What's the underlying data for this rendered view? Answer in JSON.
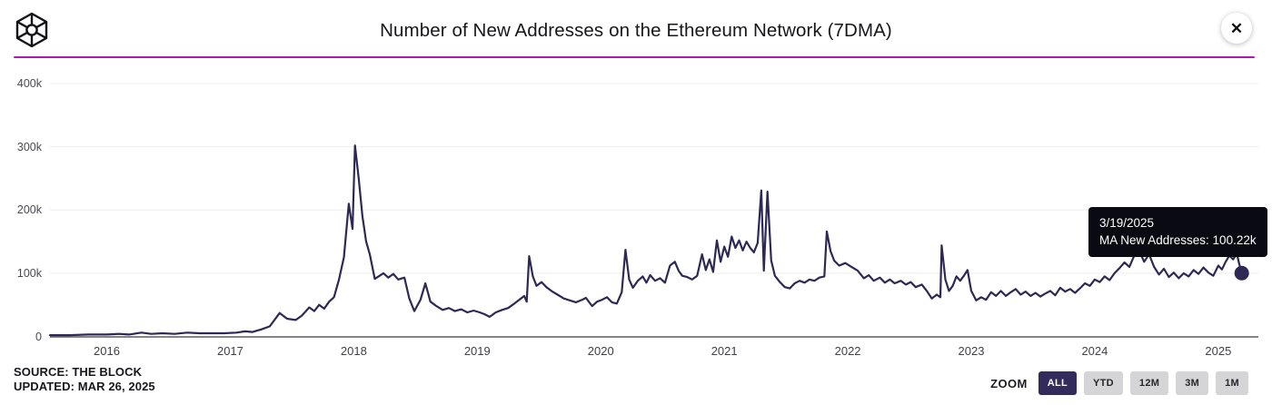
{
  "header": {
    "title": "Number of New Addresses on the Ethereum Network (7DMA)",
    "close_label": "✕"
  },
  "tooltip": {
    "date": "3/19/2025",
    "text": "MA New Addresses: 100.22k"
  },
  "footer": {
    "source": "SOURCE: THE BLOCK",
    "updated": "UPDATED: MAR 26, 2025"
  },
  "zoom_controls": {
    "label": "ZOOM",
    "options": [
      {
        "label": "ALL",
        "active": true
      },
      {
        "label": "YTD",
        "active": false
      },
      {
        "label": "12M",
        "active": false
      },
      {
        "label": "3M",
        "active": false
      },
      {
        "label": "1M",
        "active": false
      }
    ]
  },
  "colors": {
    "line": "#2d2954",
    "marker": "#2d2954",
    "grid": "#ededed",
    "axis": "#3a3a3a",
    "divider": "#a81cb4",
    "active_button": "#322b5b"
  },
  "chart_data": {
    "type": "line",
    "title": "Number of New Addresses on the Ethereum Network (7DMA)",
    "xlabel": "",
    "ylabel": "",
    "unit": "thousands of addresses",
    "grid": true,
    "legend": false,
    "x_range": [
      2015.54,
      2025.31
    ],
    "ylim": [
      0,
      400
    ],
    "y_ticks": [
      {
        "label": "400k",
        "value": 400
      },
      {
        "label": "300k",
        "value": 300
      },
      {
        "label": "200k",
        "value": 200
      },
      {
        "label": "100k",
        "value": 100
      },
      {
        "label": "0",
        "value": 0
      }
    ],
    "x_ticks": [
      {
        "label": "2016",
        "value": 2016
      },
      {
        "label": "2017",
        "value": 2017
      },
      {
        "label": "2018",
        "value": 2018
      },
      {
        "label": "2019",
        "value": 2019
      },
      {
        "label": "2020",
        "value": 2020
      },
      {
        "label": "2021",
        "value": 2021
      },
      {
        "label": "2022",
        "value": 2022
      },
      {
        "label": "2023",
        "value": 2023
      },
      {
        "label": "2024",
        "value": 2024
      },
      {
        "label": "2025",
        "value": 2025
      }
    ],
    "marker_point": {
      "x": 2025.19,
      "y": 100.22,
      "date": "3/19/2025",
      "label": "MA New Addresses: 100.22k"
    },
    "series": [
      {
        "name": "MA New Addresses",
        "points": [
          [
            2015.54,
            2
          ],
          [
            2015.7,
            2
          ],
          [
            2015.85,
            3
          ],
          [
            2016.0,
            3
          ],
          [
            2016.1,
            4
          ],
          [
            2016.18,
            3
          ],
          [
            2016.28,
            6
          ],
          [
            2016.36,
            4
          ],
          [
            2016.45,
            5
          ],
          [
            2016.55,
            4
          ],
          [
            2016.65,
            6
          ],
          [
            2016.75,
            5
          ],
          [
            2016.85,
            5
          ],
          [
            2016.95,
            5
          ],
          [
            2017.05,
            6
          ],
          [
            2017.12,
            8
          ],
          [
            2017.18,
            7
          ],
          [
            2017.25,
            11
          ],
          [
            2017.32,
            16
          ],
          [
            2017.4,
            37
          ],
          [
            2017.46,
            28
          ],
          [
            2017.53,
            26
          ],
          [
            2017.58,
            33
          ],
          [
            2017.64,
            46
          ],
          [
            2017.68,
            40
          ],
          [
            2017.72,
            50
          ],
          [
            2017.76,
            44
          ],
          [
            2017.8,
            55
          ],
          [
            2017.84,
            62
          ],
          [
            2017.88,
            90
          ],
          [
            2017.92,
            125
          ],
          [
            2017.96,
            210
          ],
          [
            2017.99,
            170
          ],
          [
            2018.01,
            302
          ],
          [
            2018.04,
            250
          ],
          [
            2018.07,
            190
          ],
          [
            2018.1,
            150
          ],
          [
            2018.13,
            130
          ],
          [
            2018.17,
            91
          ],
          [
            2018.2,
            95
          ],
          [
            2018.24,
            100
          ],
          [
            2018.28,
            93
          ],
          [
            2018.32,
            99
          ],
          [
            2018.36,
            90
          ],
          [
            2018.41,
            93
          ],
          [
            2018.45,
            60
          ],
          [
            2018.49,
            40
          ],
          [
            2018.54,
            58
          ],
          [
            2018.58,
            84
          ],
          [
            2018.62,
            55
          ],
          [
            2018.67,
            48
          ],
          [
            2018.72,
            42
          ],
          [
            2018.77,
            45
          ],
          [
            2018.82,
            40
          ],
          [
            2018.87,
            43
          ],
          [
            2018.92,
            38
          ],
          [
            2018.97,
            41
          ],
          [
            2019.02,
            38
          ],
          [
            2019.06,
            35
          ],
          [
            2019.1,
            31
          ],
          [
            2019.15,
            38
          ],
          [
            2019.2,
            42
          ],
          [
            2019.25,
            45
          ],
          [
            2019.3,
            52
          ],
          [
            2019.34,
            58
          ],
          [
            2019.38,
            64
          ],
          [
            2019.4,
            55
          ],
          [
            2019.42,
            127
          ],
          [
            2019.45,
            95
          ],
          [
            2019.48,
            80
          ],
          [
            2019.52,
            86
          ],
          [
            2019.56,
            78
          ],
          [
            2019.6,
            72
          ],
          [
            2019.65,
            66
          ],
          [
            2019.7,
            60
          ],
          [
            2019.75,
            57
          ],
          [
            2019.8,
            54
          ],
          [
            2019.85,
            58
          ],
          [
            2019.88,
            61
          ],
          [
            2019.93,
            48
          ],
          [
            2019.97,
            55
          ],
          [
            2020.01,
            58
          ],
          [
            2020.05,
            62
          ],
          [
            2020.09,
            54
          ],
          [
            2020.13,
            52
          ],
          [
            2020.17,
            70
          ],
          [
            2020.2,
            137
          ],
          [
            2020.23,
            90
          ],
          [
            2020.26,
            77
          ],
          [
            2020.3,
            88
          ],
          [
            2020.34,
            95
          ],
          [
            2020.37,
            85
          ],
          [
            2020.4,
            97
          ],
          [
            2020.44,
            88
          ],
          [
            2020.48,
            92
          ],
          [
            2020.52,
            85
          ],
          [
            2020.56,
            112
          ],
          [
            2020.6,
            118
          ],
          [
            2020.63,
            104
          ],
          [
            2020.66,
            96
          ],
          [
            2020.7,
            94
          ],
          [
            2020.74,
            90
          ],
          [
            2020.78,
            96
          ],
          [
            2020.82,
            130
          ],
          [
            2020.85,
            105
          ],
          [
            2020.88,
            122
          ],
          [
            2020.91,
            102
          ],
          [
            2020.94,
            152
          ],
          [
            2020.97,
            118
          ],
          [
            2021.0,
            142
          ],
          [
            2021.03,
            126
          ],
          [
            2021.06,
            158
          ],
          [
            2021.09,
            140
          ],
          [
            2021.12,
            152
          ],
          [
            2021.15,
            136
          ],
          [
            2021.18,
            150
          ],
          [
            2021.21,
            140
          ],
          [
            2021.24,
            133
          ],
          [
            2021.27,
            148
          ],
          [
            2021.3,
            231
          ],
          [
            2021.32,
            104
          ],
          [
            2021.35,
            229
          ],
          [
            2021.38,
            120
          ],
          [
            2021.41,
            96
          ],
          [
            2021.45,
            86
          ],
          [
            2021.49,
            78
          ],
          [
            2021.53,
            76
          ],
          [
            2021.57,
            84
          ],
          [
            2021.61,
            88
          ],
          [
            2021.65,
            85
          ],
          [
            2021.69,
            90
          ],
          [
            2021.73,
            88
          ],
          [
            2021.77,
            93
          ],
          [
            2021.81,
            95
          ],
          [
            2021.83,
            166
          ],
          [
            2021.86,
            135
          ],
          [
            2021.89,
            120
          ],
          [
            2021.93,
            112
          ],
          [
            2021.98,
            116
          ],
          [
            2022.03,
            110
          ],
          [
            2022.08,
            104
          ],
          [
            2022.13,
            92
          ],
          [
            2022.17,
            97
          ],
          [
            2022.21,
            88
          ],
          [
            2022.26,
            93
          ],
          [
            2022.3,
            85
          ],
          [
            2022.34,
            90
          ],
          [
            2022.38,
            84
          ],
          [
            2022.43,
            88
          ],
          [
            2022.47,
            82
          ],
          [
            2022.51,
            86
          ],
          [
            2022.55,
            78
          ],
          [
            2022.6,
            82
          ],
          [
            2022.64,
            72
          ],
          [
            2022.68,
            60
          ],
          [
            2022.72,
            66
          ],
          [
            2022.75,
            62
          ],
          [
            2022.76,
            144
          ],
          [
            2022.79,
            90
          ],
          [
            2022.82,
            72
          ],
          [
            2022.85,
            80
          ],
          [
            2022.88,
            95
          ],
          [
            2022.91,
            88
          ],
          [
            2022.94,
            96
          ],
          [
            2022.97,
            105
          ],
          [
            2023.0,
            72
          ],
          [
            2023.04,
            57
          ],
          [
            2023.08,
            62
          ],
          [
            2023.12,
            58
          ],
          [
            2023.16,
            70
          ],
          [
            2023.2,
            64
          ],
          [
            2023.24,
            72
          ],
          [
            2023.28,
            64
          ],
          [
            2023.32,
            70
          ],
          [
            2023.36,
            75
          ],
          [
            2023.4,
            66
          ],
          [
            2023.44,
            71
          ],
          [
            2023.48,
            64
          ],
          [
            2023.52,
            69
          ],
          [
            2023.56,
            63
          ],
          [
            2023.6,
            68
          ],
          [
            2023.64,
            72
          ],
          [
            2023.68,
            65
          ],
          [
            2023.72,
            77
          ],
          [
            2023.76,
            71
          ],
          [
            2023.8,
            75
          ],
          [
            2023.84,
            69
          ],
          [
            2023.88,
            76
          ],
          [
            2023.92,
            84
          ],
          [
            2023.96,
            80
          ],
          [
            2024.0,
            90
          ],
          [
            2024.04,
            86
          ],
          [
            2024.08,
            95
          ],
          [
            2024.12,
            89
          ],
          [
            2024.16,
            100
          ],
          [
            2024.2,
            108
          ],
          [
            2024.24,
            117
          ],
          [
            2024.28,
            110
          ],
          [
            2024.32,
            128
          ],
          [
            2024.36,
            135
          ],
          [
            2024.4,
            118
          ],
          [
            2024.44,
            130
          ],
          [
            2024.48,
            110
          ],
          [
            2024.52,
            98
          ],
          [
            2024.56,
            107
          ],
          [
            2024.6,
            94
          ],
          [
            2024.64,
            101
          ],
          [
            2024.68,
            92
          ],
          [
            2024.72,
            100
          ],
          [
            2024.76,
            95
          ],
          [
            2024.8,
            105
          ],
          [
            2024.84,
            99
          ],
          [
            2024.88,
            109
          ],
          [
            2024.92,
            101
          ],
          [
            2024.96,
            96
          ],
          [
            2025.0,
            112
          ],
          [
            2025.03,
            106
          ],
          [
            2025.06,
            118
          ],
          [
            2025.09,
            128
          ],
          [
            2025.12,
            122
          ],
          [
            2025.15,
            131
          ],
          [
            2025.17,
            114
          ],
          [
            2025.19,
            100.22
          ]
        ]
      }
    ]
  }
}
